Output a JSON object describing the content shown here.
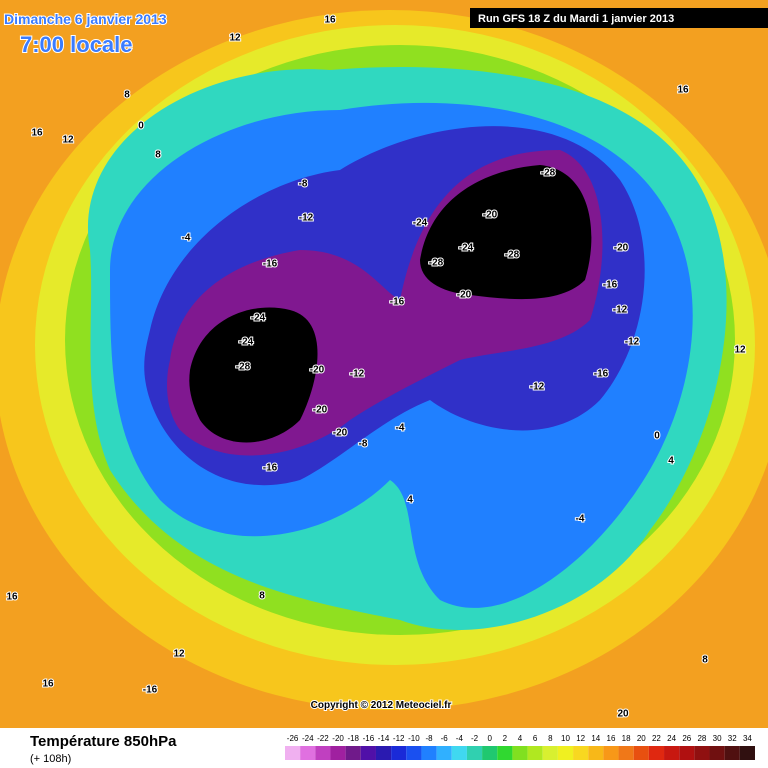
{
  "header": {
    "date": "Dimanche 6 janvier 2013",
    "time": "7:00 locale",
    "run": "Run GFS 18 Z du Mardi 1 janvier 2013"
  },
  "map": {
    "contour_labels": [
      16,
      12,
      8,
      16,
      12,
      0,
      8,
      -8,
      -12,
      -4,
      -16,
      -16,
      -24,
      -24,
      -28,
      -20,
      -12,
      -20,
      -20,
      -16,
      -28,
      -24,
      -20,
      -28,
      -24,
      -28,
      -20,
      -20,
      -16,
      -12,
      -12,
      -12,
      -16,
      -8,
      -4,
      0,
      4,
      -4,
      8,
      12,
      16,
      16,
      -16,
      20,
      16,
      12,
      8,
      4
    ],
    "copyright": "Copyright © 2012 Meteociel.fr"
  },
  "footer": {
    "title": "Température 850hPa",
    "lead": "(+ 108h)"
  },
  "scale": {
    "values": [
      -26,
      -24,
      -22,
      -20,
      -18,
      -16,
      -14,
      -12,
      -10,
      -8,
      -6,
      -4,
      -2,
      0,
      2,
      4,
      6,
      8,
      10,
      12,
      14,
      16,
      18,
      20,
      22,
      24,
      26,
      28,
      30,
      32,
      34
    ],
    "colors": [
      "#f0b0f0",
      "#e070e0",
      "#c040c0",
      "#a020a0",
      "#701a8a",
      "#5010a8",
      "#2a1ab0",
      "#1a2ad8",
      "#1a50f0",
      "#2080ff",
      "#30b0ff",
      "#40d8f0",
      "#30d0b0",
      "#20c870",
      "#30d830",
      "#80e020",
      "#b0e820",
      "#d8f030",
      "#f0f020",
      "#f8d820",
      "#f8b818",
      "#f89818",
      "#f07818",
      "#e85010",
      "#e02810",
      "#c81810",
      "#b01010",
      "#901010",
      "#701010",
      "#501010",
      "#301010"
    ]
  }
}
